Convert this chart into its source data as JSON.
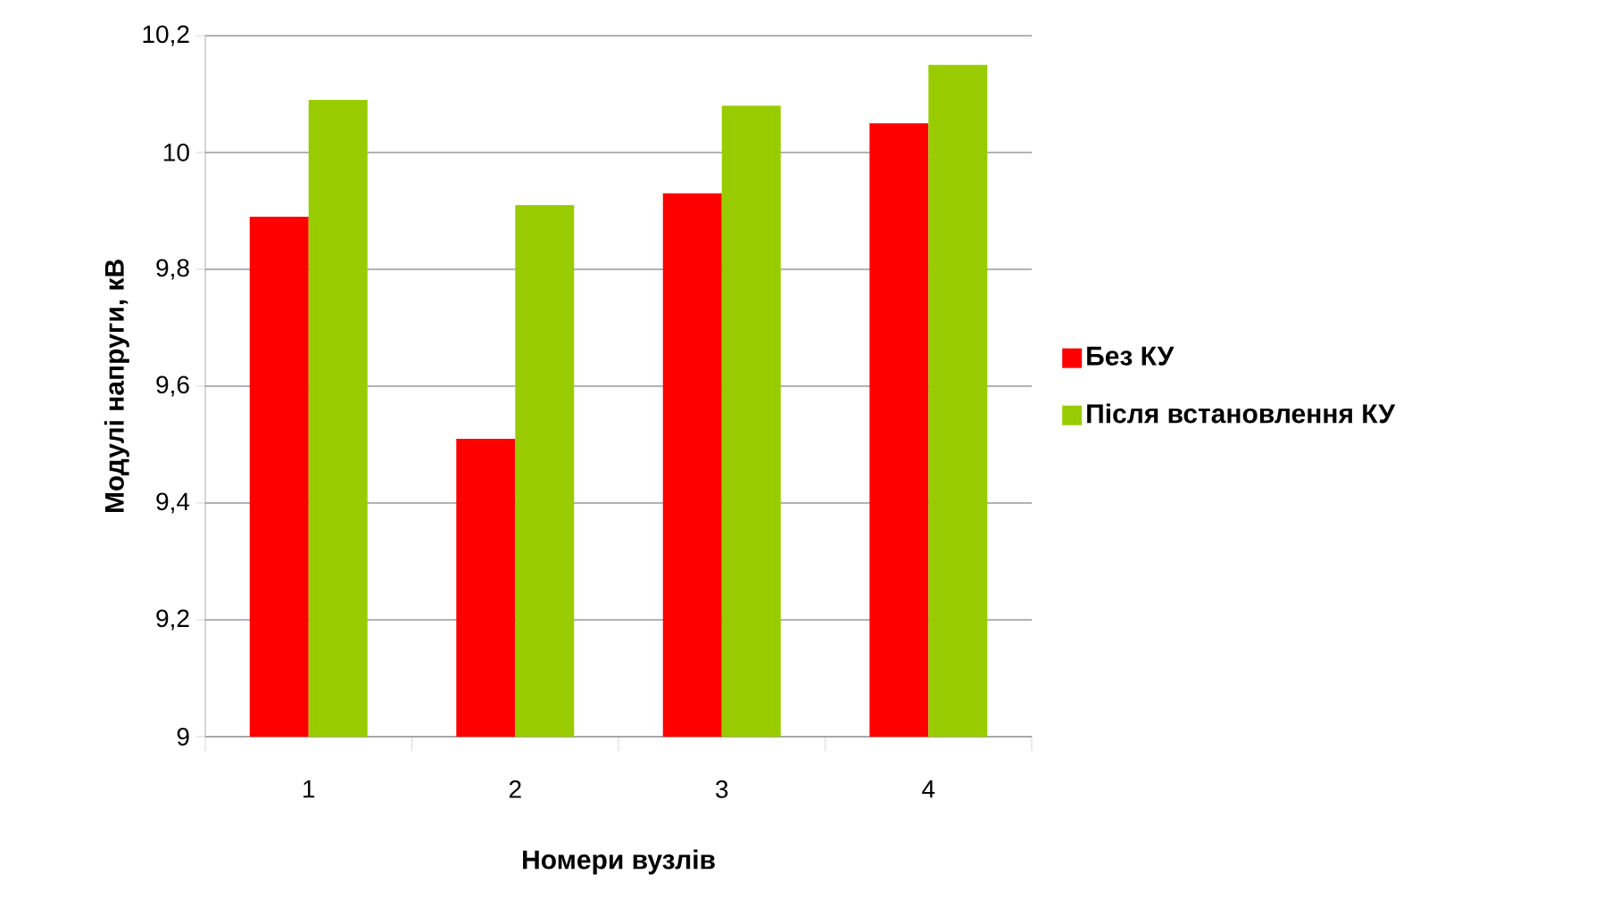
{
  "chart_data": {
    "type": "bar",
    "xlabel": "Номери вузлів",
    "ylabel": "Модулі напруги, кВ",
    "categories": [
      "1",
      "2",
      "3",
      "4"
    ],
    "series": [
      {
        "name": "Без КУ",
        "color": "#ff0000",
        "values": [
          9.89,
          9.51,
          9.93,
          10.05
        ]
      },
      {
        "name": "Після встановлення КУ",
        "color": "#99cc00",
        "values": [
          10.09,
          9.91,
          10.08,
          10.15
        ]
      }
    ],
    "ylim": [
      9,
      10.2
    ],
    "yticks": [
      9,
      {
        "value": 9.2,
        "label": "9,2"
      },
      {
        "value": 9.4,
        "label": "9,4"
      },
      {
        "value": 9.6,
        "label": "9,6"
      },
      {
        "value": 9.8,
        "label": "9,8"
      },
      10,
      {
        "value": 10.2,
        "label": "10,2"
      }
    ],
    "grid": "y",
    "legend": "right"
  }
}
